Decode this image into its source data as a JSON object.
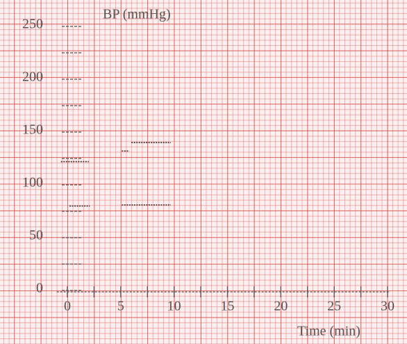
{
  "chart_data": {
    "type": "line",
    "y_label": "BP (mmHg)",
    "x_label": "Time (min)",
    "xlim": [
      -1,
      30
    ],
    "ylim": [
      0,
      250
    ],
    "xticks": [
      0,
      5,
      10,
      15,
      20,
      25,
      30
    ],
    "xminorticks": [
      2.5,
      7.5,
      12.5,
      17.5,
      22.5,
      27.5
    ],
    "yticks": [
      0,
      50,
      100,
      150,
      200,
      250
    ],
    "yminorticks": [
      25,
      75,
      125,
      175,
      225
    ],
    "color": "#3a2a2a",
    "series": [
      {
        "x": [
          -0.6,
          2
        ],
        "values": [
          122,
          122
        ]
      },
      {
        "x": [
          0.2,
          2.1
        ],
        "values": [
          80,
          80
        ]
      },
      {
        "x": [
          5.1,
          5.8
        ],
        "values": [
          132,
          132
        ]
      },
      {
        "x": [
          6,
          9.7
        ],
        "values": [
          140,
          140
        ]
      },
      {
        "x": [
          5.1,
          9.7
        ],
        "values": [
          81,
          81
        ]
      }
    ]
  }
}
